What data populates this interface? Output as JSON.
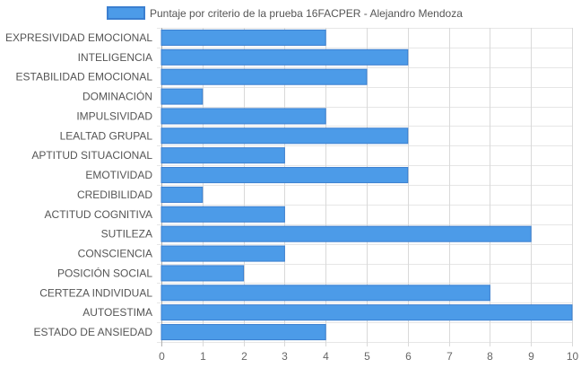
{
  "chart_data": {
    "type": "bar",
    "orientation": "horizontal",
    "legend": {
      "label": "Puntaje por criterio de la prueba 16FACPER - Alejandro Mendoza",
      "placement": "top-center"
    },
    "series": [
      {
        "name": "Puntaje por criterio de la prueba 16FACPER - Alejandro Mendoza",
        "color": "#4c9be8",
        "border_color": "#3b7fd0",
        "values": [
          4,
          6,
          5,
          1,
          4,
          6,
          3,
          6,
          1,
          3,
          9,
          3,
          2,
          8,
          10,
          4
        ]
      }
    ],
    "categories": [
      "EXPRESIVIDAD EMOCIONAL",
      "INTELIGENCIA",
      "ESTABILIDAD EMOCIONAL",
      "DOMINACIÓN",
      "IMPULSIVIDAD",
      "LEALTAD GRUPAL",
      "APTITUD SITUACIONAL",
      "EMOTIVIDAD",
      "CREDIBILIDAD",
      "ACTITUD COGNITIVA",
      "SUTILEZA",
      "CONSCIENCIA",
      "POSICIÓN SOCIAL",
      "CERTEZA INDIVIDUAL",
      "AUTOESTIMA",
      "ESTADO DE ANSIEDAD"
    ],
    "xlim": [
      0,
      10
    ],
    "xticks": [
      "0",
      "1",
      "2",
      "3",
      "4",
      "5",
      "6",
      "7",
      "8",
      "9",
      "10"
    ],
    "grid": true
  }
}
